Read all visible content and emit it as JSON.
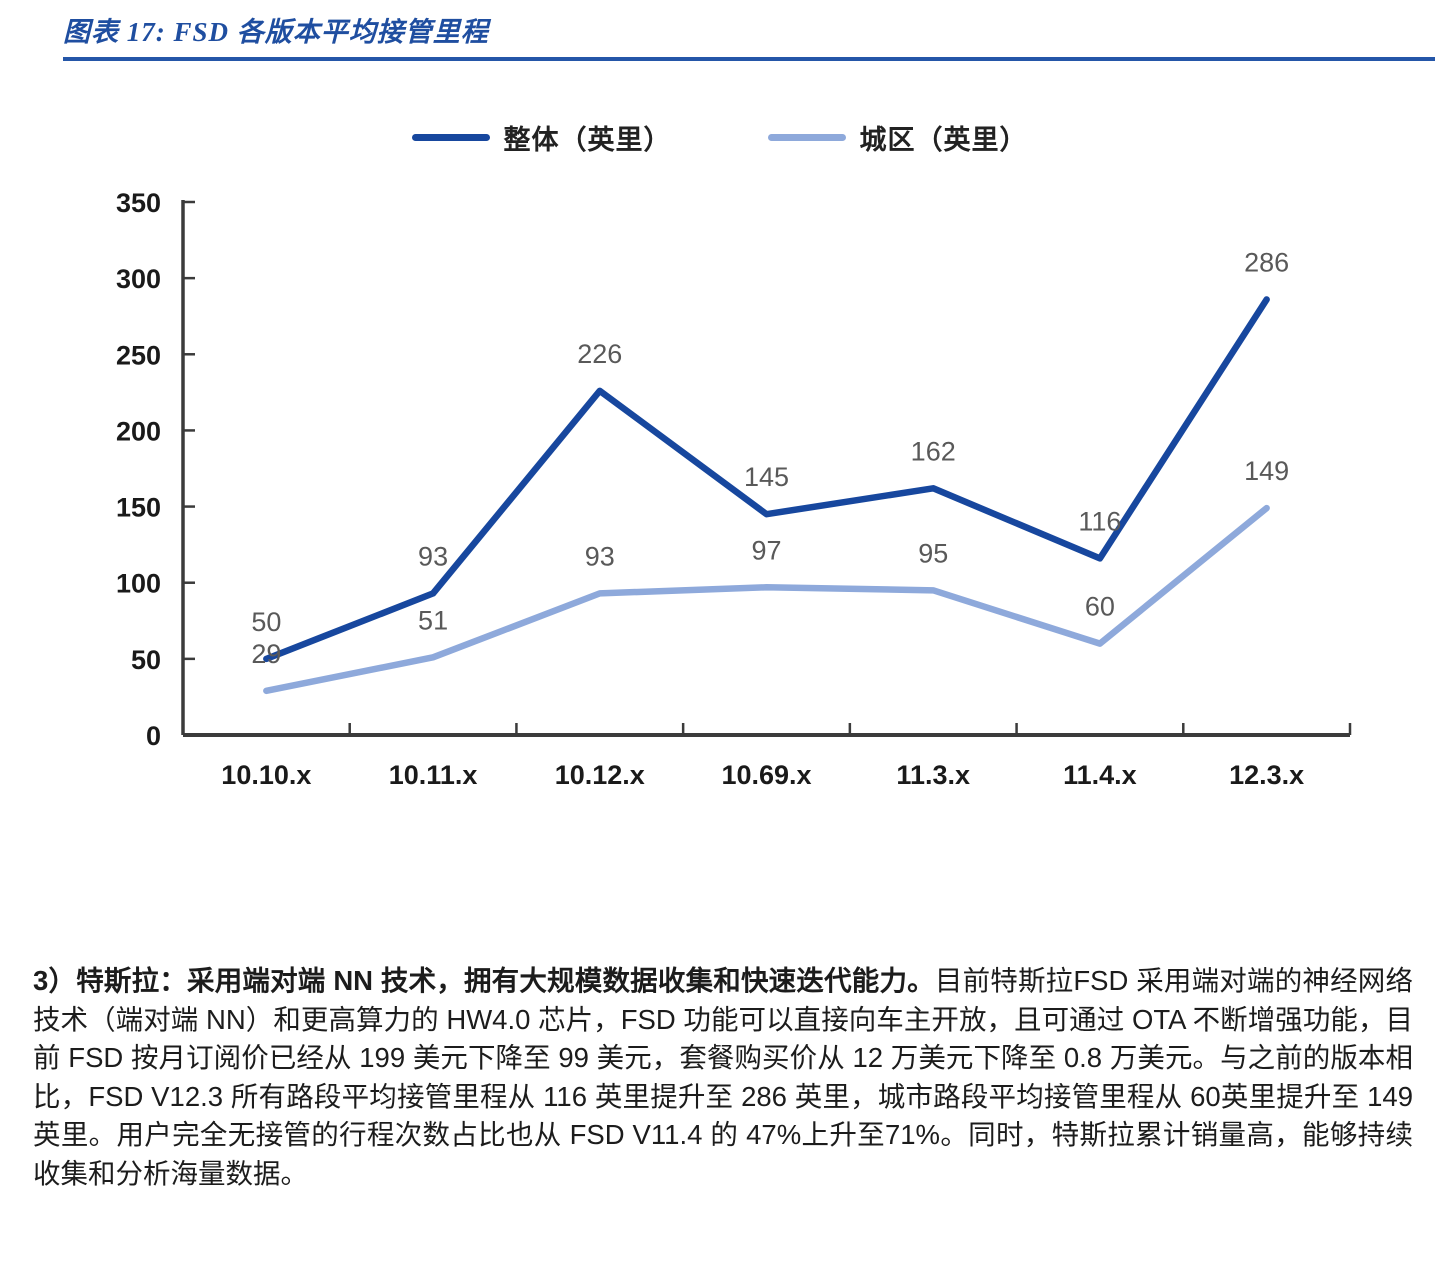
{
  "page": {
    "background": "#ffffff"
  },
  "figure": {
    "title": "图表 17: FSD 各版本平均接管里程",
    "title_color": "#1F4EA0",
    "rule_color": "#2456A8"
  },
  "chart_data": {
    "type": "line",
    "title": "FSD 各版本平均接管里程",
    "categories": [
      "10.10.x",
      "10.11.x",
      "10.12.x",
      "10.69.x",
      "11.3.x",
      "11.4.x",
      "12.3.x"
    ],
    "series": [
      {
        "name": "整体（英里）",
        "color": "#17479E",
        "values": [
          50,
          93,
          226,
          145,
          162,
          116,
          286
        ]
      },
      {
        "name": "城区（英里）",
        "color": "#8EA9DB",
        "values": [
          29,
          51,
          93,
          97,
          95,
          60,
          149
        ]
      }
    ],
    "xlabel": "",
    "ylabel": "",
    "ylim": [
      0,
      350
    ],
    "yticks": [
      0,
      50,
      100,
      150,
      200,
      250,
      300,
      350
    ],
    "grid": false,
    "legend_position": "top",
    "data_labels": true,
    "data_label_color": "#595959",
    "axis_color": "#3B3B3B",
    "tick_text_color": "#1A1A1A"
  },
  "paragraph": {
    "lead": "3）特斯拉：采用端对端 NN 技术，拥有大规模数据收集和快速迭代能力。",
    "body": "目前特斯拉FSD 采用端对端的神经网络技术（端对端 NN）和更高算力的 HW4.0 芯片，FSD 功能可以直接向车主开放，且可通过 OTA 不断增强功能，目前 FSD 按月订阅价已经从 199 美元下降至 99 美元，套餐购买价从 12 万美元下降至 0.8 万美元。与之前的版本相比，FSD V12.3 所有路段平均接管里程从 116 英里提升至 286 英里，城市路段平均接管里程从 60英里提升至 149 英里。用户完全无接管的行程次数占比也从 FSD V11.4 的 47%上升至71%。同时，特斯拉累计销量高，能够持续收集和分析海量数据。"
  }
}
